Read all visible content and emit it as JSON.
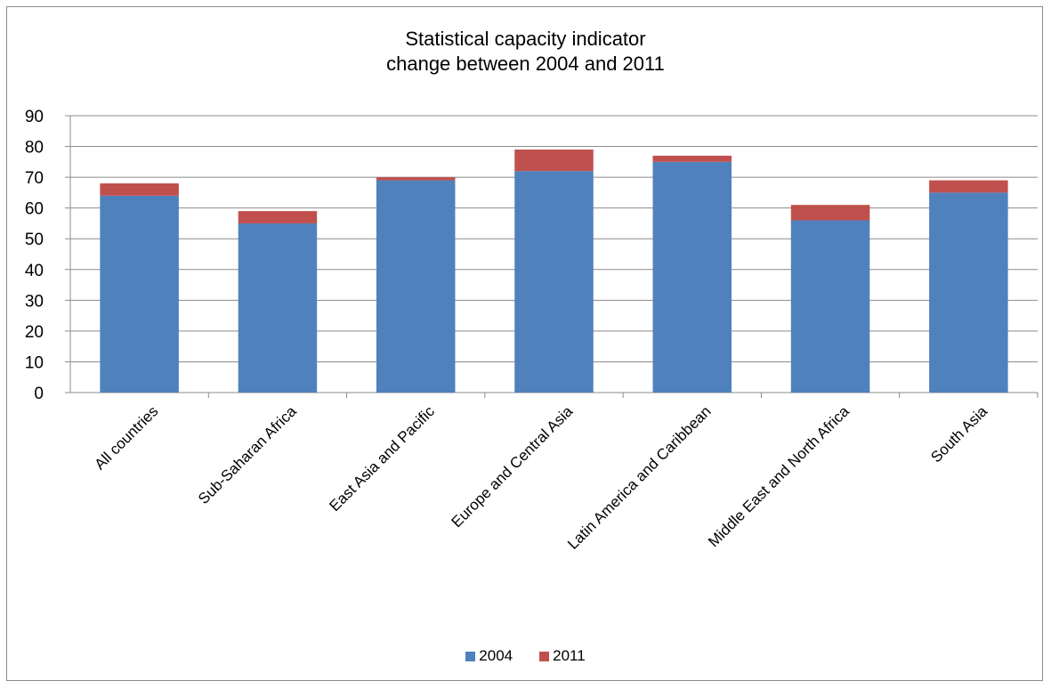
{
  "chart_data": {
    "type": "bar",
    "stacked": true,
    "title_lines": [
      "Statistical capacity indicator",
      "change between 2004 and 2011"
    ],
    "categories": [
      "All countries",
      "Sub-Saharan Africa",
      "East Asia and Pacific",
      "Europe and Central Asia",
      "Latin America and Caribbean",
      "Middle East and North Africa",
      "South Asia"
    ],
    "series": [
      {
        "name": "2004",
        "color": "#4f81bd",
        "values": [
          64,
          55,
          69,
          72,
          75,
          56,
          65
        ]
      },
      {
        "name": "2011",
        "color": "#c0504d",
        "values": [
          4,
          4,
          1,
          7,
          2,
          5,
          4
        ]
      }
    ],
    "yticks": [
      "0",
      "10",
      "20",
      "30",
      "40",
      "50",
      "60",
      "70",
      "80",
      "90"
    ],
    "ylim": [
      0,
      90
    ],
    "grid": true,
    "legend_position": "bottom"
  }
}
